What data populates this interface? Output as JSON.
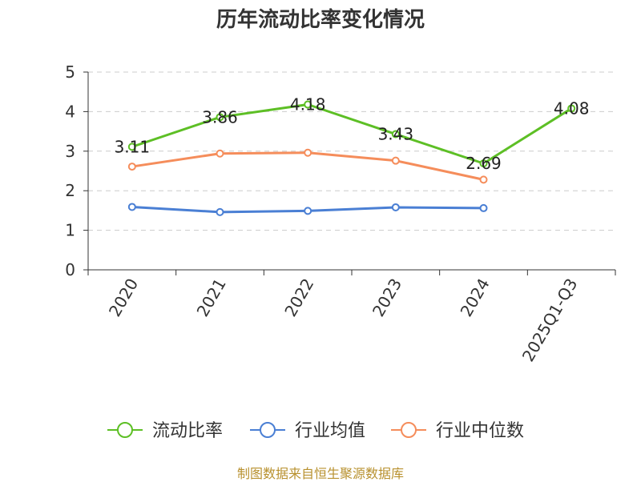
{
  "title": "历年流动比率变化情况",
  "source": "制图数据来自恒生聚源数据库",
  "colors": {
    "series_current": "#5dbf25",
    "series_avg": "#4a7fd4",
    "series_median": "#f58d5b",
    "grid": "#cccccc",
    "axis": "#333333"
  },
  "chart_data": {
    "type": "line",
    "title": "历年流动比率变化情况",
    "categories": [
      "2020",
      "2021",
      "2022",
      "2023",
      "2024",
      "2025Q1-Q3"
    ],
    "ylim": [
      0,
      5
    ],
    "yticks": [
      0,
      1,
      2,
      3,
      4,
      5
    ],
    "grid": true,
    "legend_position": "bottom",
    "xlabel": "",
    "ylabel": "",
    "series": [
      {
        "name": "流动比率",
        "values": [
          3.11,
          3.86,
          4.18,
          3.43,
          2.69,
          4.08
        ],
        "labels": [
          "3.11",
          "3.86",
          "4.18",
          "3.43",
          "2.69",
          "4.08"
        ]
      },
      {
        "name": "行业均值",
        "values": [
          1.59,
          1.46,
          1.49,
          1.58,
          1.56,
          null
        ]
      },
      {
        "name": "行业中位数",
        "values": [
          2.61,
          2.94,
          2.96,
          2.76,
          2.28,
          null
        ]
      }
    ]
  }
}
